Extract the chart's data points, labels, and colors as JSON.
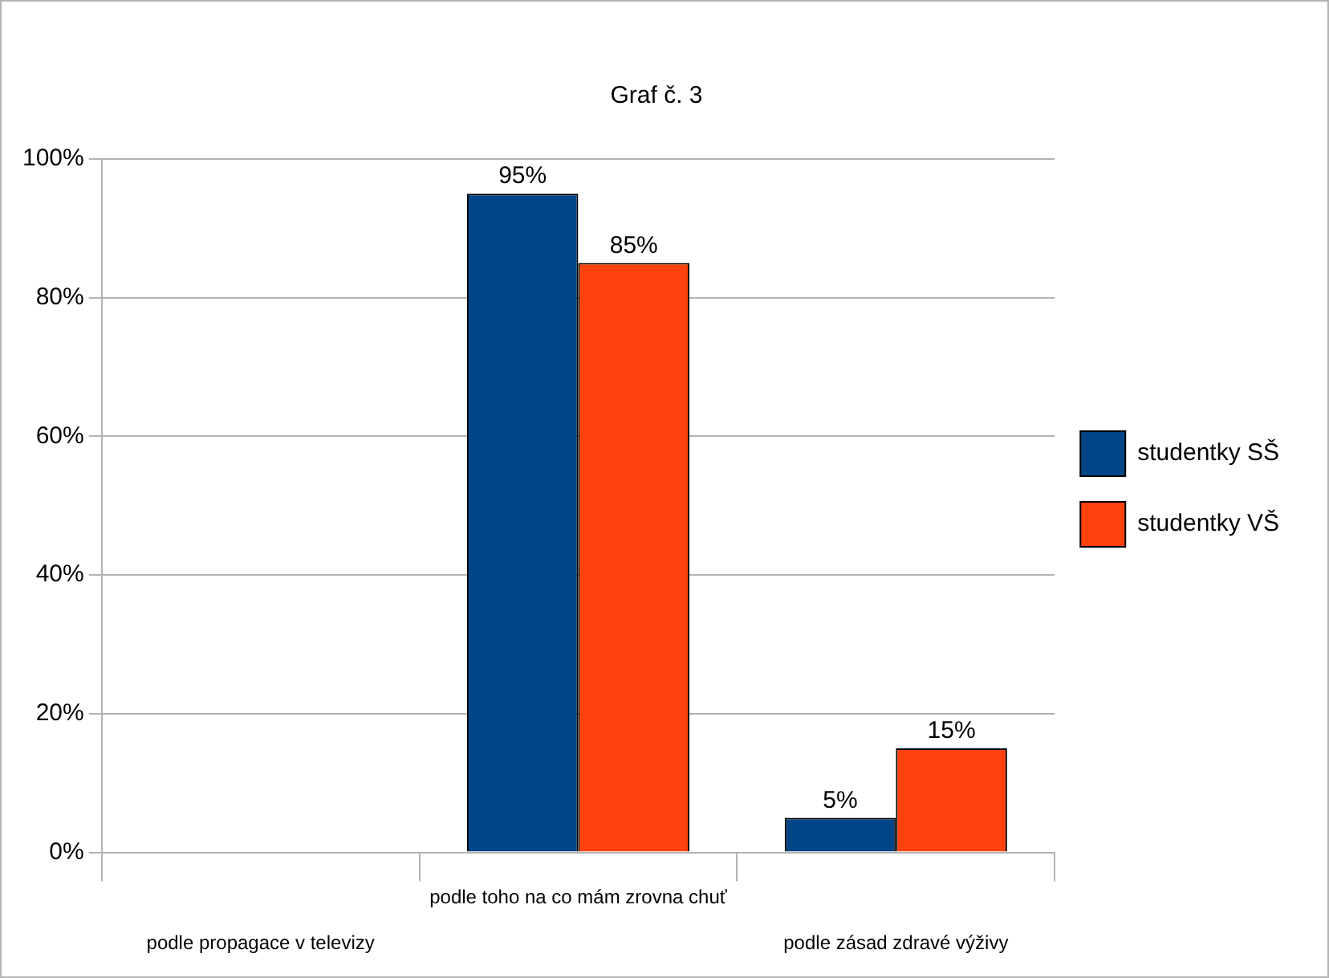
{
  "chart_data": {
    "type": "bar",
    "title": "Graf č. 3",
    "categories": [
      "podle propagace v televizy",
      "podle toho na co mám zrovna chuť",
      "podle zásad zdravé výživy"
    ],
    "series": [
      {
        "name": "studentky SŠ",
        "color": "#004586",
        "values": [
          null,
          95,
          5
        ],
        "value_labels": [
          null,
          "95%",
          "5%"
        ]
      },
      {
        "name": "studentky VŠ",
        "color": "#ff420e",
        "values": [
          null,
          85,
          15
        ],
        "value_labels": [
          null,
          "85%",
          "15%"
        ]
      }
    ],
    "ylim": [
      0,
      100
    ],
    "yticks": [
      {
        "value": 0,
        "label": "0%"
      },
      {
        "value": 20,
        "label": "20%"
      },
      {
        "value": 40,
        "label": "40%"
      },
      {
        "value": 60,
        "label": "60%"
      },
      {
        "value": 80,
        "label": "80%"
      },
      {
        "value": 100,
        "label": "100%"
      }
    ],
    "grid": "y",
    "legend": "right"
  }
}
